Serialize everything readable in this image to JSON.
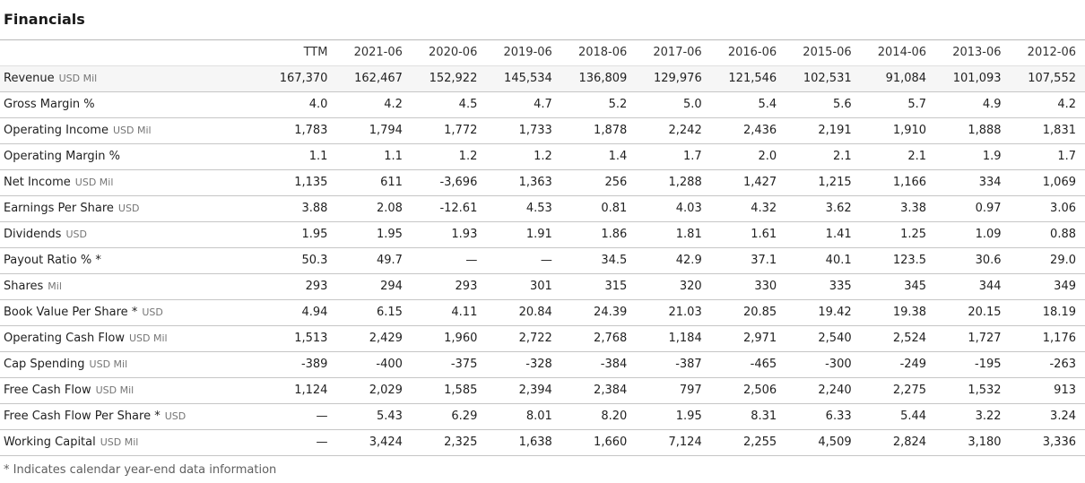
{
  "page": {
    "title": "Financials",
    "footnote": "* Indicates calendar year-end data information"
  },
  "colors": {
    "text": "#222222",
    "header_text": "#333333",
    "unit_text": "#757575",
    "footnote_text": "#5f5f5f",
    "border": "#c6c6c6",
    "header_border": "#e0e0e0",
    "top_border": "#b9b9b9",
    "highlight_row_bg": "#f6f6f6"
  },
  "table": {
    "label_column_header": "",
    "columns": [
      "TTM",
      "2021-06",
      "2020-06",
      "2019-06",
      "2018-06",
      "2017-06",
      "2016-06",
      "2015-06",
      "2014-06",
      "2013-06",
      "2012-06"
    ],
    "rows": [
      {
        "label": "Revenue",
        "unit": "USD Mil",
        "highlighted": true,
        "values": [
          "167,370",
          "162,467",
          "152,922",
          "145,534",
          "136,809",
          "129,976",
          "121,546",
          "102,531",
          "91,084",
          "101,093",
          "107,552"
        ]
      },
      {
        "label": "Gross Margin %",
        "unit": "",
        "values": [
          "4.0",
          "4.2",
          "4.5",
          "4.7",
          "5.2",
          "5.0",
          "5.4",
          "5.6",
          "5.7",
          "4.9",
          "4.2"
        ]
      },
      {
        "label": "Operating Income",
        "unit": "USD Mil",
        "values": [
          "1,783",
          "1,794",
          "1,772",
          "1,733",
          "1,878",
          "2,242",
          "2,436",
          "2,191",
          "1,910",
          "1,888",
          "1,831"
        ]
      },
      {
        "label": "Operating Margin %",
        "unit": "",
        "values": [
          "1.1",
          "1.1",
          "1.2",
          "1.2",
          "1.4",
          "1.7",
          "2.0",
          "2.1",
          "2.1",
          "1.9",
          "1.7"
        ]
      },
      {
        "label": "Net Income",
        "unit": "USD Mil",
        "values": [
          "1,135",
          "611",
          "-3,696",
          "1,363",
          "256",
          "1,288",
          "1,427",
          "1,215",
          "1,166",
          "334",
          "1,069"
        ]
      },
      {
        "label": "Earnings Per Share",
        "unit": "USD",
        "values": [
          "3.88",
          "2.08",
          "-12.61",
          "4.53",
          "0.81",
          "4.03",
          "4.32",
          "3.62",
          "3.38",
          "0.97",
          "3.06"
        ]
      },
      {
        "label": "Dividends",
        "unit": "USD",
        "values": [
          "1.95",
          "1.95",
          "1.93",
          "1.91",
          "1.86",
          "1.81",
          "1.61",
          "1.41",
          "1.25",
          "1.09",
          "0.88"
        ]
      },
      {
        "label": "Payout Ratio % *",
        "unit": "",
        "values": [
          "50.3",
          "49.7",
          "—",
          "—",
          "34.5",
          "42.9",
          "37.1",
          "40.1",
          "123.5",
          "30.6",
          "29.0"
        ]
      },
      {
        "label": "Shares",
        "unit": "Mil",
        "values": [
          "293",
          "294",
          "293",
          "301",
          "315",
          "320",
          "330",
          "335",
          "345",
          "344",
          "349"
        ]
      },
      {
        "label": "Book Value Per Share *",
        "unit": "USD",
        "values": [
          "4.94",
          "6.15",
          "4.11",
          "20.84",
          "24.39",
          "21.03",
          "20.85",
          "19.42",
          "19.38",
          "20.15",
          "18.19"
        ]
      },
      {
        "label": "Operating Cash Flow",
        "unit": "USD Mil",
        "values": [
          "1,513",
          "2,429",
          "1,960",
          "2,722",
          "2,768",
          "1,184",
          "2,971",
          "2,540",
          "2,524",
          "1,727",
          "1,176"
        ]
      },
      {
        "label": "Cap Spending",
        "unit": "USD Mil",
        "values": [
          "-389",
          "-400",
          "-375",
          "-328",
          "-384",
          "-387",
          "-465",
          "-300",
          "-249",
          "-195",
          "-263"
        ]
      },
      {
        "label": "Free Cash Flow",
        "unit": "USD Mil",
        "values": [
          "1,124",
          "2,029",
          "1,585",
          "2,394",
          "2,384",
          "797",
          "2,506",
          "2,240",
          "2,275",
          "1,532",
          "913"
        ]
      },
      {
        "label": "Free Cash Flow Per Share *",
        "unit": "USD",
        "values": [
          "—",
          "5.43",
          "6.29",
          "8.01",
          "8.20",
          "1.95",
          "8.31",
          "6.33",
          "5.44",
          "3.22",
          "3.24"
        ]
      },
      {
        "label": "Working Capital",
        "unit": "USD Mil",
        "values": [
          "—",
          "3,424",
          "2,325",
          "1,638",
          "1,660",
          "7,124",
          "2,255",
          "4,509",
          "2,824",
          "3,180",
          "3,336"
        ]
      }
    ]
  }
}
